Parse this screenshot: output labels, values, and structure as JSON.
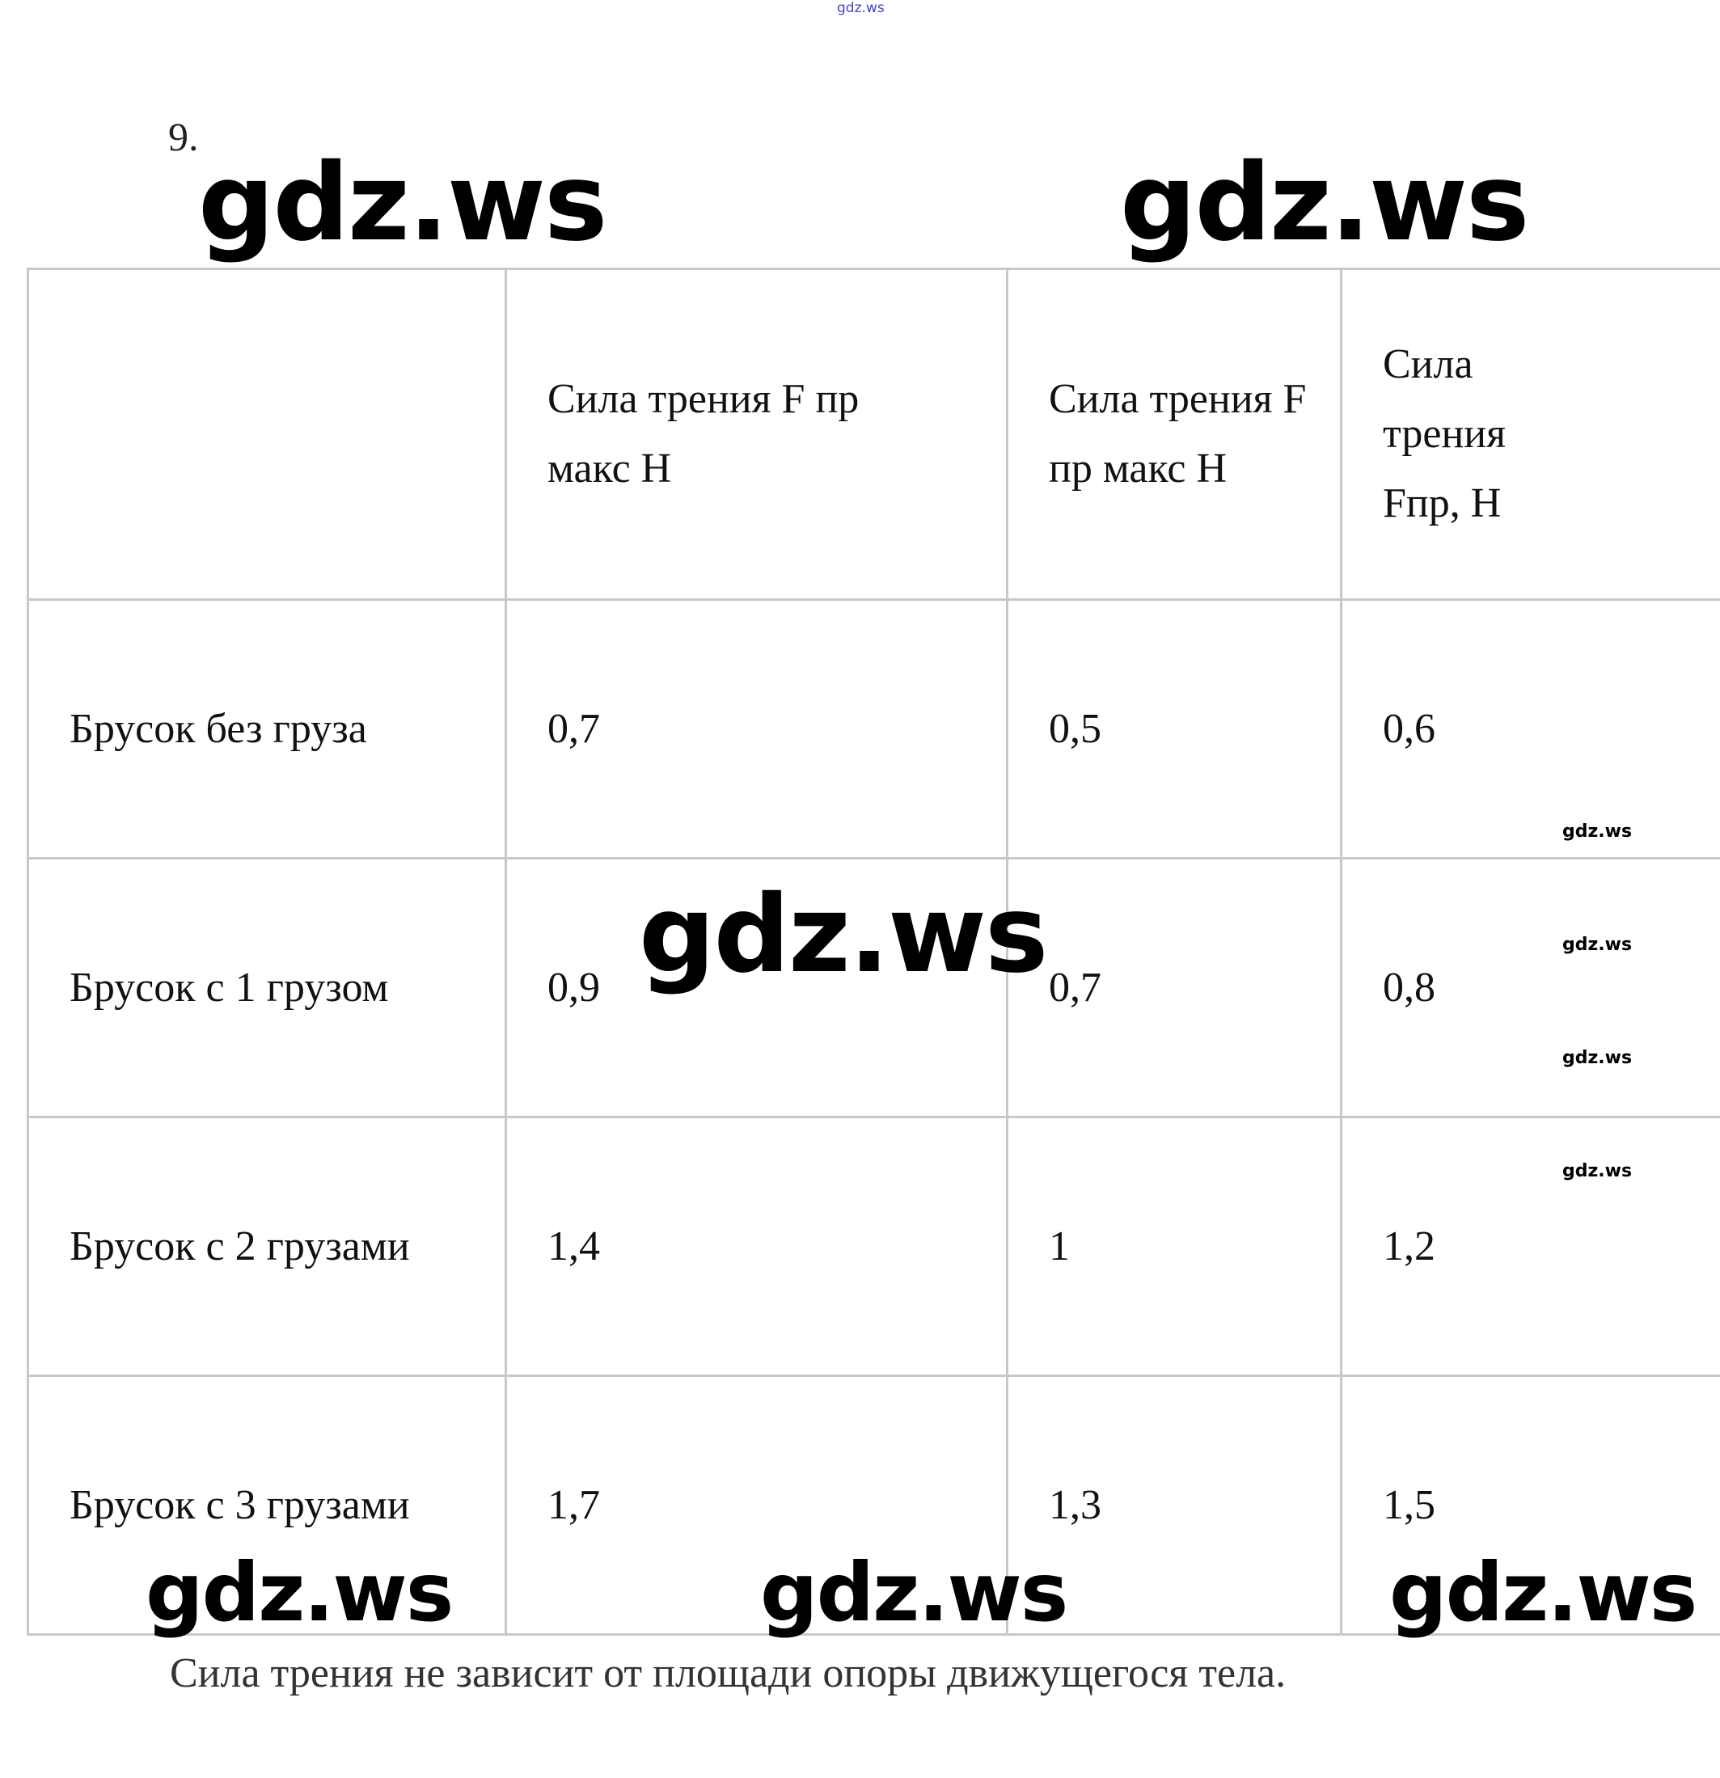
{
  "watermark": "gdz.ws",
  "task_number": "9.",
  "table": {
    "headers": [
      "",
      "Сила трения F пр макс Н",
      "Сила трения F пр макс Н",
      "Сила трения Fпр, Н"
    ],
    "rows": [
      {
        "label": "Брусок без груза",
        "values": [
          "0,7",
          "0,5",
          "0,6"
        ]
      },
      {
        "label": "Брусок с 1 грузом",
        "values": [
          "0,9",
          "0,7",
          "0,8"
        ]
      },
      {
        "label": "Брусок с 2 грузами",
        "values": [
          "1,4",
          "1",
          "1,2"
        ]
      },
      {
        "label": "Брусок с 3 грузами",
        "values": [
          "1,7",
          "1,3",
          "1,5"
        ]
      }
    ]
  },
  "conclusion": "Сила трения не зависит от площади опоры движущегося тела."
}
